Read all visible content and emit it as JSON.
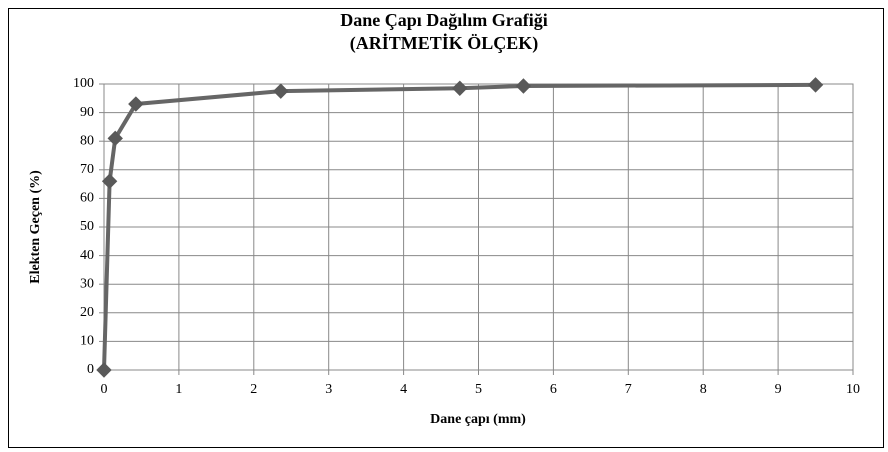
{
  "chart_data": {
    "type": "line",
    "title": "Dane Çapı Dağılım Grafiği",
    "subtitle": "(ARİTMETİK ÖLÇEK)",
    "xlabel": "Dane çapı (mm)",
    "ylabel": "Elekten Geçen (%)",
    "x": [
      0,
      0.075,
      0.15,
      0.425,
      2.36,
      4.75,
      5.6,
      9.5
    ],
    "series": [
      {
        "name": "Elekten Geçen",
        "color": "#666666",
        "marker_color": "#595959",
        "values": [
          0,
          66,
          81,
          93,
          97.5,
          98.5,
          99.3,
          99.7
        ]
      }
    ],
    "xlim": [
      0,
      10
    ],
    "xticks": [
      0,
      1,
      2,
      3,
      4,
      5,
      6,
      7,
      8,
      9,
      10
    ],
    "ylim": [
      0,
      100
    ],
    "yticks": [
      0,
      10,
      20,
      30,
      40,
      50,
      60,
      70,
      80,
      90,
      100
    ],
    "grid": true
  }
}
